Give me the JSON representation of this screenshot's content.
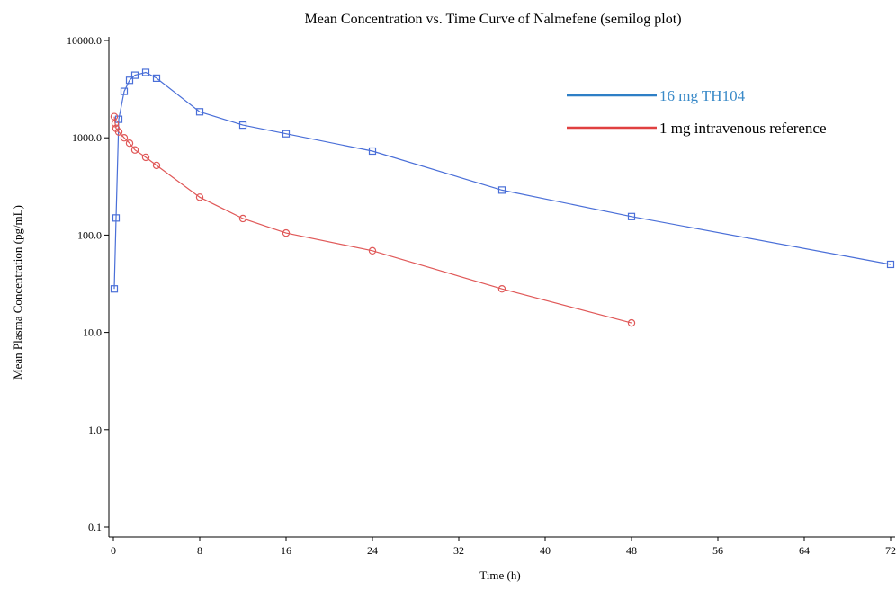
{
  "chart_data": {
    "type": "line",
    "title": "Mean Concentration vs. Time Curve of Nalmefene (semilog plot)",
    "xlabel": "Time (h)",
    "ylabel": "Mean Plasma Concentration (pg/mL)",
    "xlim": [
      0,
      72
    ],
    "ylim": [
      0.1,
      10000
    ],
    "yscale": "log",
    "x_ticks": [
      0,
      8,
      16,
      24,
      32,
      40,
      48,
      56,
      64,
      72
    ],
    "x_tick_labels": [
      "0",
      "8",
      "16",
      "24",
      "32",
      "40",
      "48",
      "56",
      "64",
      "72"
    ],
    "y_ticks": [
      0.1,
      1,
      10,
      100,
      1000,
      10000
    ],
    "y_tick_labels": [
      "0.1",
      "1.0",
      "10.0",
      "100.0",
      "1000.0",
      "10000.0"
    ],
    "grid": false,
    "legend_position": "top-right",
    "series": [
      {
        "name": "16 mg TH104",
        "color": "#4a6fd8",
        "legend_color": "#2e7fc6",
        "label_color": "#3a8ac8",
        "marker": "square",
        "x": [
          0.083,
          0.25,
          0.5,
          1,
          1.5,
          2,
          3,
          4,
          8,
          12,
          16,
          24,
          36,
          48,
          72
        ],
        "y": [
          28,
          150,
          1550,
          3000,
          3900,
          4400,
          4700,
          4100,
          1850,
          1350,
          1100,
          730,
          290,
          155,
          50
        ]
      },
      {
        "name": "1 mg intravenous reference",
        "color": "#e05858",
        "legend_color": "#e04040",
        "label_color": "#000000",
        "marker": "circle",
        "x": [
          0.083,
          0.167,
          0.25,
          0.5,
          1,
          1.5,
          2,
          3,
          4,
          8,
          12,
          16,
          24,
          36,
          48
        ],
        "y": [
          1650,
          1400,
          1250,
          1150,
          1000,
          880,
          750,
          630,
          520,
          245,
          148,
          105,
          69,
          28,
          12.5
        ]
      }
    ]
  }
}
